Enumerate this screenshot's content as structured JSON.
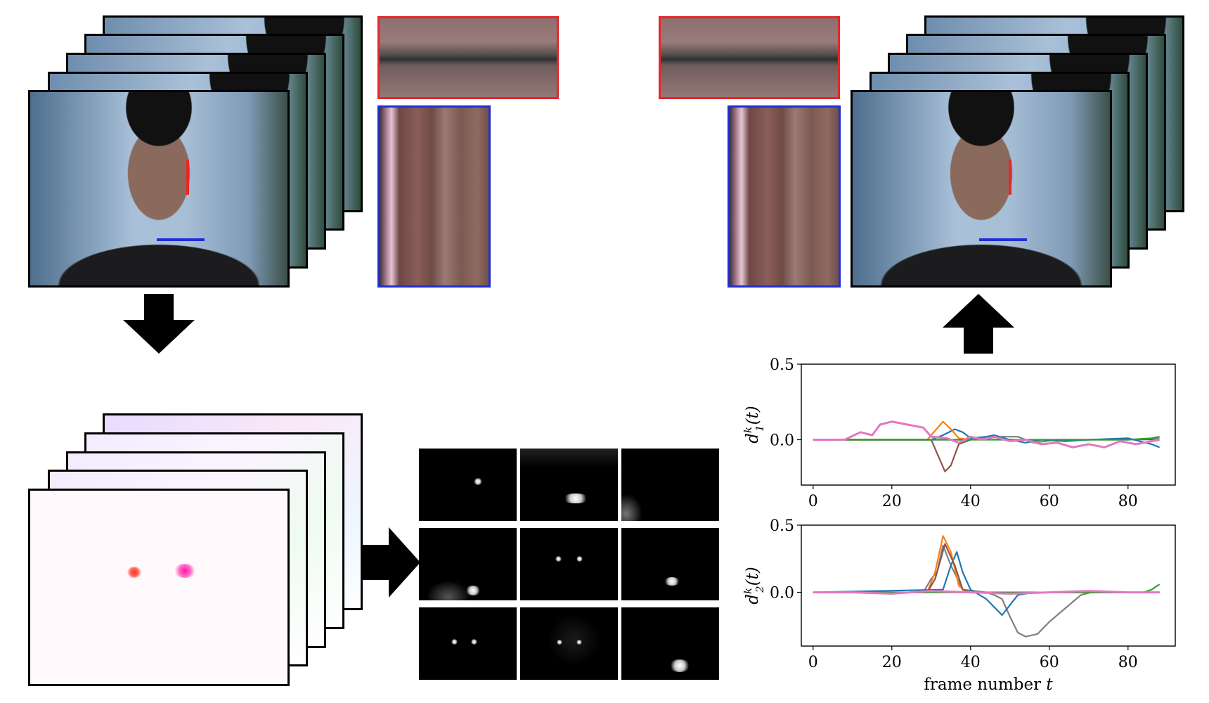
{
  "chart_data": [
    {
      "type": "line",
      "ylabel": "d_1^k(t)",
      "xlim": [
        -3,
        92
      ],
      "ylim": [
        -0.3,
        0.5
      ],
      "xticks": [
        0,
        20,
        40,
        60,
        80
      ],
      "yticks": [
        "0.5",
        "0.0"
      ],
      "ytick_values": [
        0.5,
        0.0
      ],
      "series": [
        {
          "color": "#808080",
          "x": [
            0,
            30,
            40,
            48,
            52,
            56,
            62,
            70,
            80,
            88
          ],
          "y": [
            0,
            0,
            0,
            0.02,
            0.02,
            -0.02,
            0,
            0,
            0,
            0.01
          ]
        },
        {
          "color": "#1f77b4",
          "x": [
            0,
            30,
            33,
            36,
            38,
            40,
            44,
            46,
            50,
            54,
            58,
            64,
            70,
            80,
            86,
            88
          ],
          "y": [
            0,
            0,
            0.03,
            0.07,
            0.05,
            0.01,
            0.02,
            0.03,
            0,
            -0.02,
            0,
            -0.01,
            0,
            0.01,
            -0.03,
            -0.05
          ]
        },
        {
          "color": "#ff7f0e",
          "x": [
            0,
            29,
            31,
            33,
            35,
            37,
            40
          ],
          "y": [
            0,
            0,
            0.06,
            0.12,
            0.07,
            0.01,
            0
          ]
        },
        {
          "color": "#8c564b",
          "x": [
            0,
            30,
            32,
            33.5,
            35,
            37,
            40
          ],
          "y": [
            0,
            0,
            -0.12,
            -0.21,
            -0.17,
            -0.03,
            0
          ]
        },
        {
          "color": "#2ca02c",
          "x": [
            0,
            80,
            86,
            88
          ],
          "y": [
            0,
            0,
            0.01,
            0.02
          ]
        },
        {
          "color": "#e377c2",
          "x": [
            0,
            8,
            12,
            15,
            17,
            20,
            24,
            28,
            30,
            34,
            37,
            40,
            43,
            46,
            50,
            54,
            58,
            62,
            66,
            70,
            74,
            78,
            82,
            86,
            88
          ],
          "y": [
            0,
            0,
            0.05,
            0.03,
            0.1,
            0.12,
            0.1,
            0.08,
            0.02,
            0.01,
            -0.02,
            0.02,
            0,
            0.02,
            -0.01,
            0,
            -0.03,
            -0.02,
            -0.05,
            -0.03,
            -0.05,
            -0.01,
            -0.03,
            -0.01,
            0
          ]
        }
      ]
    },
    {
      "type": "line",
      "ylabel": "d_2^k(t)",
      "xlabel": "frame number t",
      "xlim": [
        -3,
        92
      ],
      "ylim": [
        -0.4,
        0.5
      ],
      "xticks": [
        0,
        20,
        40,
        60,
        80
      ],
      "yticks": [
        "0.5",
        "0.0"
      ],
      "ytick_values": [
        0.5,
        0.0
      ],
      "series": [
        {
          "color": "#808080",
          "x": [
            0,
            28,
            30,
            31.5,
            33,
            35,
            38,
            44,
            46,
            48,
            50,
            52,
            54,
            57,
            60,
            64,
            68,
            72,
            80,
            88
          ],
          "y": [
            0,
            0,
            0.1,
            0.15,
            0.35,
            0.2,
            0.02,
            0,
            -0.02,
            -0.05,
            -0.18,
            -0.3,
            -0.33,
            -0.31,
            -0.22,
            -0.12,
            -0.02,
            0.01,
            0,
            0
          ]
        },
        {
          "color": "#1f77b4",
          "x": [
            0,
            33,
            35,
            36.5,
            38,
            40,
            44,
            48,
            52,
            56,
            88
          ],
          "y": [
            0,
            0.02,
            0.2,
            0.3,
            0.15,
            0.02,
            -0.05,
            -0.17,
            -0.02,
            0,
            0
          ]
        },
        {
          "color": "#ff7f0e",
          "x": [
            0,
            29,
            31,
            33,
            35,
            37,
            39,
            88
          ],
          "y": [
            0,
            0,
            0.15,
            0.42,
            0.3,
            0.05,
            0,
            0
          ]
        },
        {
          "color": "#8c564b",
          "x": [
            0,
            29,
            31,
            33.5,
            36,
            38,
            40,
            88
          ],
          "y": [
            0,
            0,
            0.1,
            0.36,
            0.2,
            0.02,
            0,
            0
          ]
        },
        {
          "color": "#2ca02c",
          "x": [
            0,
            84,
            86,
            88
          ],
          "y": [
            0,
            0,
            0.02,
            0.06
          ]
        },
        {
          "color": "#e377c2",
          "x": [
            0,
            10,
            20,
            30,
            40,
            50,
            60,
            70,
            80,
            88
          ],
          "y": [
            0,
            0,
            -0.01,
            0.01,
            0,
            -0.01,
            0,
            0.01,
            0,
            0
          ]
        }
      ]
    }
  ]
}
